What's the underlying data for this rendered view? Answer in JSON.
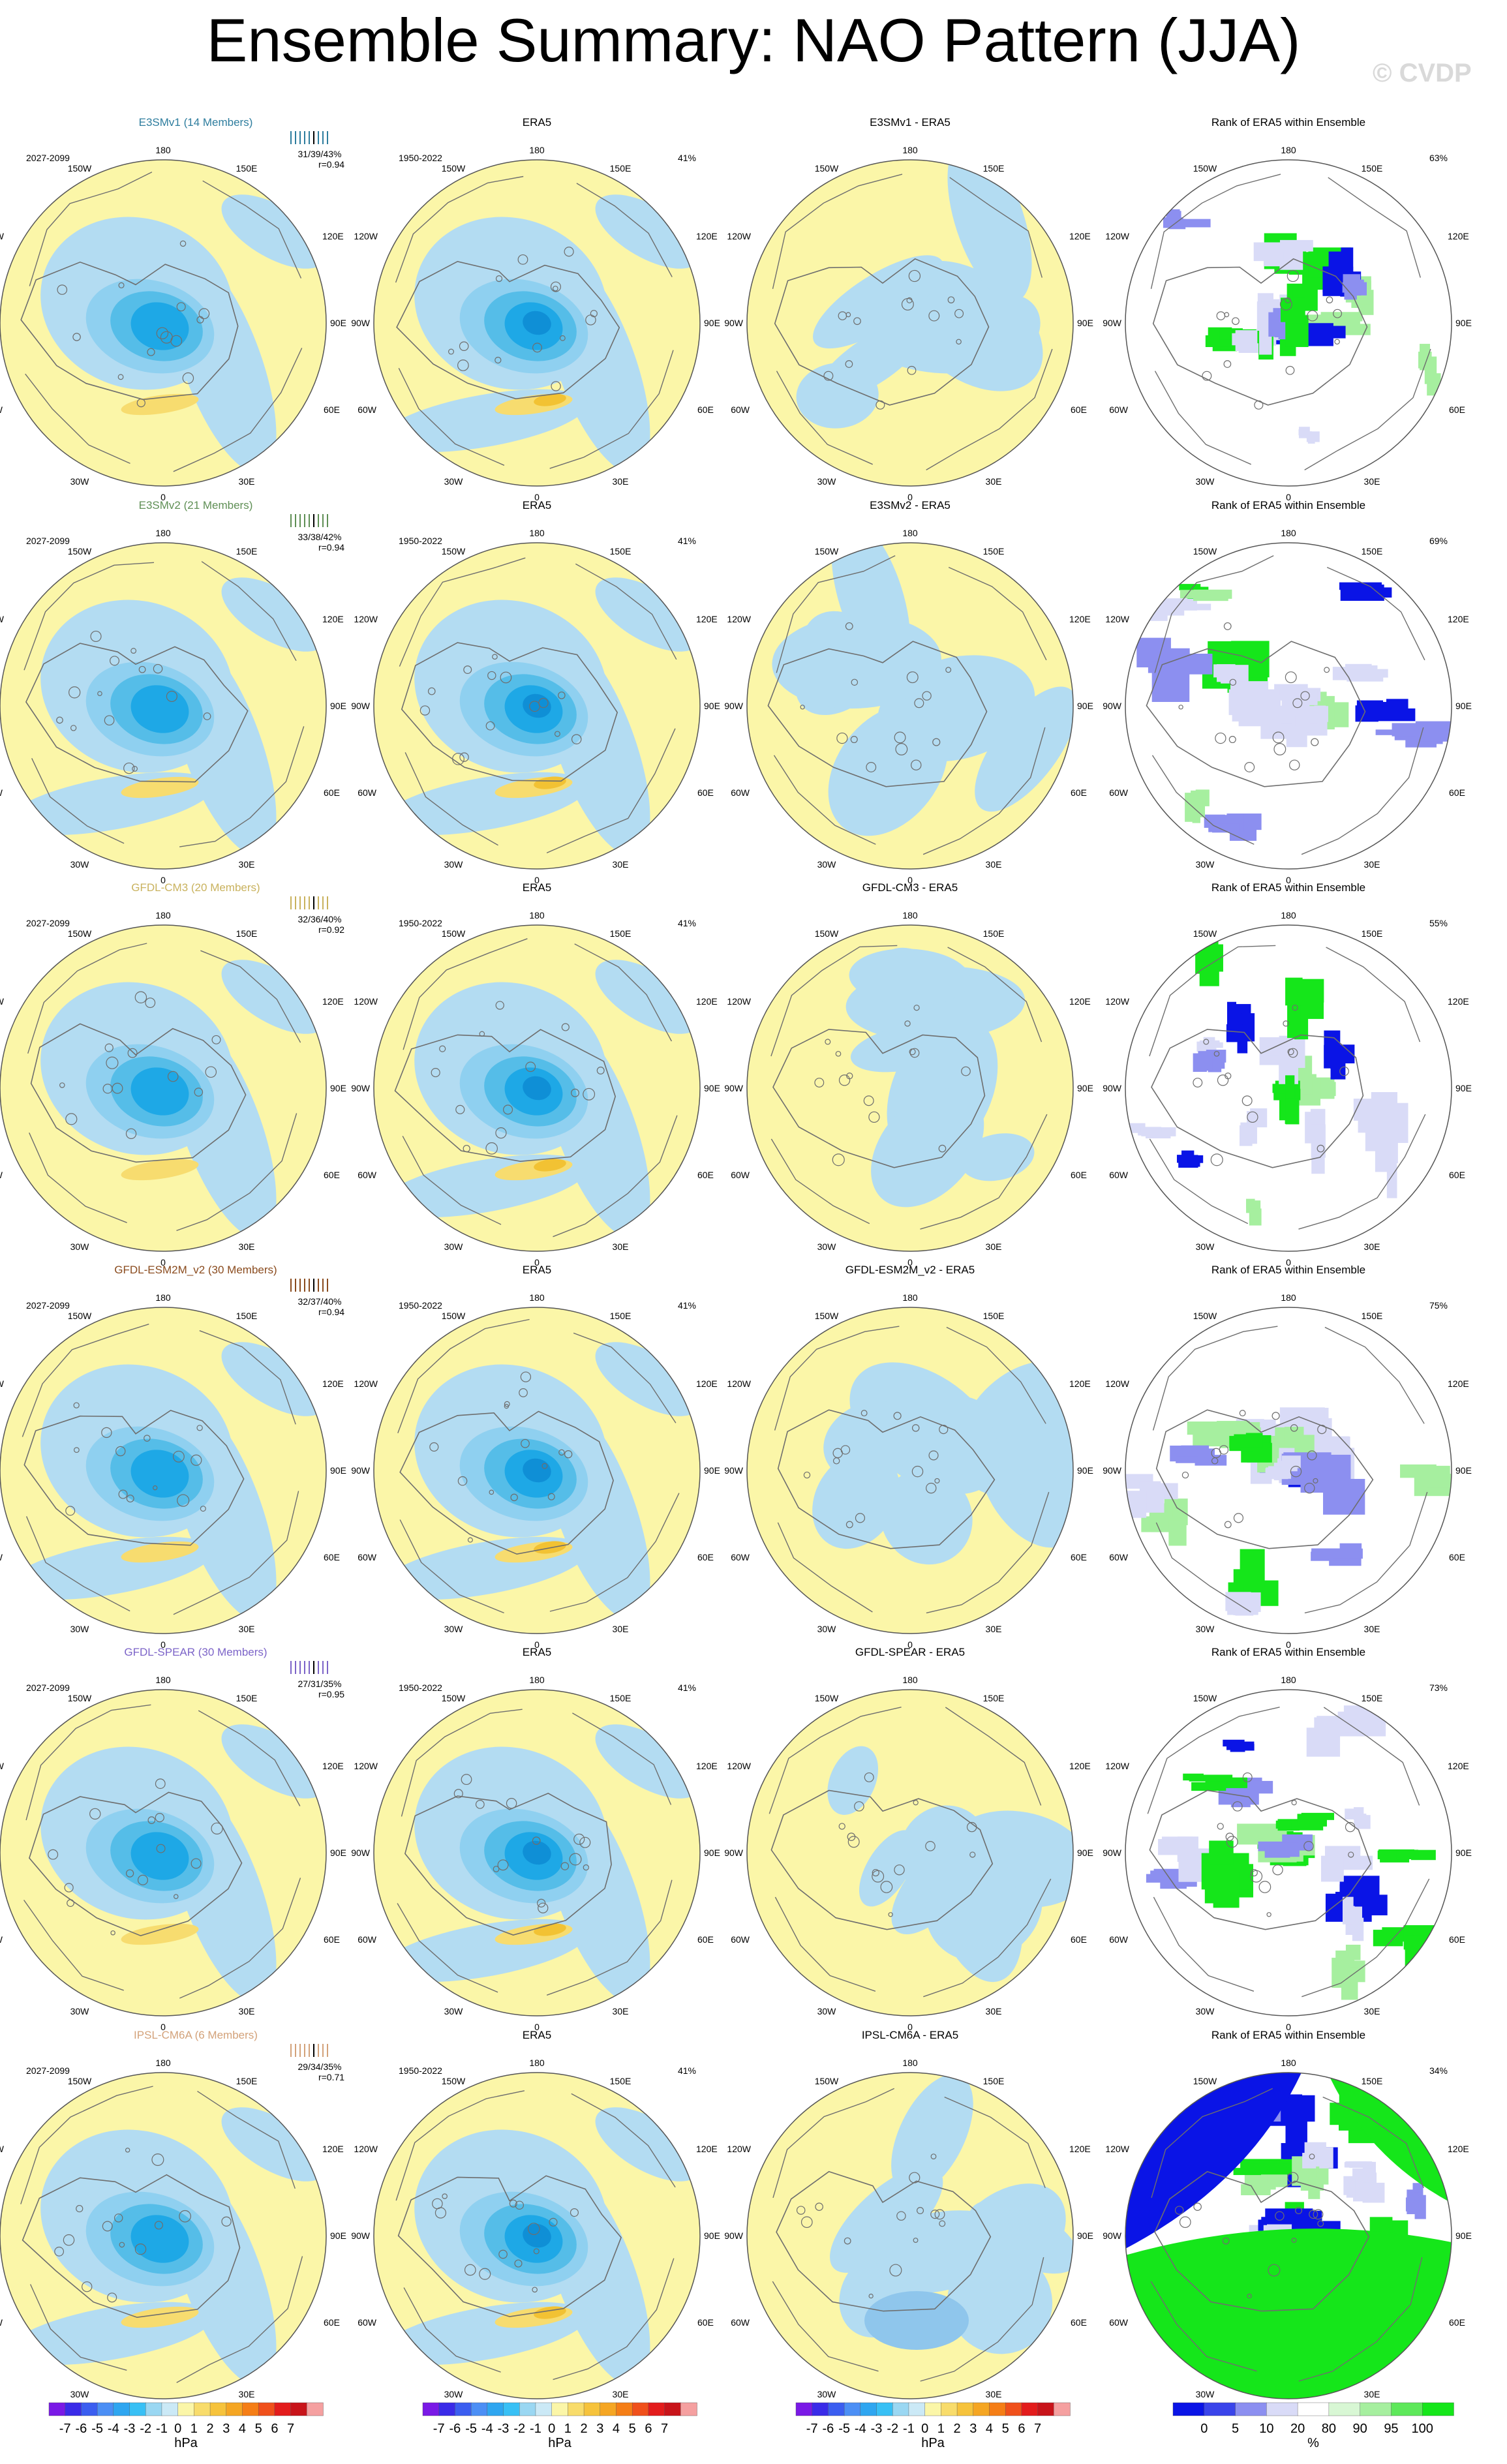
{
  "title": "Ensemble Summary: NAO Pattern (JJA)",
  "watermark": "© CVDP",
  "colors": {
    "ocean_neg": "#b3dcf2",
    "land_pos": "#fbf6a8",
    "neg_levels": [
      "#8fd0f0",
      "#55bde8",
      "#1ea8e6",
      "#0f8fd6"
    ],
    "pos_levels": [
      "#f7dc6f",
      "#f2c233",
      "#f0a820"
    ],
    "rank_dark": "#0a14e6",
    "rank_mid": "#8c8ff0",
    "rank_light": "#d9dbf7",
    "rank_green": "#15e61a",
    "rank_lightgreen": "#a6ef9f",
    "coast": "#6e6e6e"
  },
  "lon_labels": {
    "top": "180",
    "bottom": "0",
    "upper_left": "150W",
    "upper_right": "150E",
    "mid_upper_left": "120W",
    "mid_upper_right": "120E",
    "left": "90W",
    "right": "90E",
    "mid_lower_left": "60W",
    "mid_lower_right": "60E",
    "lower_left": "30W",
    "lower_right": "30E"
  },
  "rows": [
    {
      "model": "E3SMv1 (14 Members)",
      "model_color": "#2e7d9e",
      "period": "2027-2099",
      "stats": "31/39/43%",
      "r": "r=0.94",
      "obs_title": "ERA5",
      "obs_period": "1950-2022",
      "obs_pct": "41%",
      "diff_title": "E3SMv1 - ERA5",
      "rank_title": "Rank of ERA5 within Ensemble",
      "rank_pct": "63%",
      "variant": 0
    },
    {
      "model": "E3SMv2 (21 Members)",
      "model_color": "#5f8f55",
      "period": "2027-2099",
      "stats": "33/38/42%",
      "r": "r=0.94",
      "obs_title": "ERA5",
      "obs_period": "1950-2022",
      "obs_pct": "41%",
      "diff_title": "E3SMv2 - ERA5",
      "rank_title": "Rank of ERA5 within Ensemble",
      "rank_pct": "69%",
      "variant": 1
    },
    {
      "model": "GFDL-CM3 (20 Members)",
      "model_color": "#c9b25e",
      "period": "2027-2099",
      "stats": "32/36/40%",
      "r": "r=0.92",
      "obs_title": "ERA5",
      "obs_period": "1950-2022",
      "obs_pct": "41%",
      "diff_title": "GFDL-CM3 - ERA5",
      "rank_title": "Rank of ERA5 within Ensemble",
      "rank_pct": "55%",
      "variant": 2
    },
    {
      "model": "GFDL-ESM2M_v2 (30 Members)",
      "model_color": "#8a4b1e",
      "period": "2027-2099",
      "stats": "32/37/40%",
      "r": "r=0.94",
      "obs_title": "ERA5",
      "obs_period": "1950-2022",
      "obs_pct": "41%",
      "diff_title": "GFDL-ESM2M_v2 - ERA5",
      "rank_title": "Rank of ERA5 within Ensemble",
      "rank_pct": "75%",
      "variant": 3
    },
    {
      "model": "GFDL-SPEAR (30 Members)",
      "model_color": "#7c64c8",
      "period": "2027-2099",
      "stats": "27/31/35%",
      "r": "r=0.95",
      "obs_title": "ERA5",
      "obs_period": "1950-2022",
      "obs_pct": "41%",
      "diff_title": "GFDL-SPEAR - ERA5",
      "rank_title": "Rank of ERA5 within Ensemble",
      "rank_pct": "73%",
      "variant": 4
    },
    {
      "model": "IPSL-CM6A (6 Members)",
      "model_color": "#d3a27a",
      "period": "2027-2099",
      "stats": "29/34/35%",
      "r": "r=0.71",
      "obs_title": "ERA5",
      "obs_period": "1950-2022",
      "obs_pct": "41%",
      "diff_title": "IPSL-CM6A - ERA5",
      "rank_title": "Rank of ERA5 within Ensemble",
      "rank_pct": "34%",
      "variant": 5
    }
  ],
  "chart_data": [
    {
      "type": "colorbar",
      "unit": "hPa",
      "ticks": [
        "-7",
        "-6",
        "-5",
        "-4",
        "-3",
        "-2",
        "-1",
        "0",
        "1",
        "2",
        "3",
        "4",
        "5",
        "6",
        "7"
      ],
      "colors": [
        "#7a19e6",
        "#3a2be8",
        "#3b5ef0",
        "#4c8ff5",
        "#2fa6f0",
        "#38c0f5",
        "#9ad7f2",
        "#cbe9f6",
        "#fbf6a8",
        "#f8dc6b",
        "#f6c33c",
        "#f5a623",
        "#f57e16",
        "#f0501b",
        "#e31c1c",
        "#c8141a",
        "#f5a0a0"
      ]
    },
    {
      "type": "colorbar",
      "unit": "hPa",
      "ticks": [
        "-7",
        "-6",
        "-5",
        "-4",
        "-3",
        "-2",
        "-1",
        "0",
        "1",
        "2",
        "3",
        "4",
        "5",
        "6",
        "7"
      ],
      "colors": [
        "#7a19e6",
        "#3a2be8",
        "#3b5ef0",
        "#4c8ff5",
        "#2fa6f0",
        "#38c0f5",
        "#9ad7f2",
        "#cbe9f6",
        "#fbf6a8",
        "#f8dc6b",
        "#f6c33c",
        "#f5a623",
        "#f57e16",
        "#f0501b",
        "#e31c1c",
        "#c8141a",
        "#f5a0a0"
      ]
    },
    {
      "type": "colorbar",
      "unit": "hPa",
      "ticks": [
        "-7",
        "-6",
        "-5",
        "-4",
        "-3",
        "-2",
        "-1",
        "0",
        "1",
        "2",
        "3",
        "4",
        "5",
        "6",
        "7"
      ],
      "colors": [
        "#7a19e6",
        "#3a2be8",
        "#3b5ef0",
        "#4c8ff5",
        "#2fa6f0",
        "#38c0f5",
        "#9ad7f2",
        "#cbe9f6",
        "#fbf6a8",
        "#f8dc6b",
        "#f6c33c",
        "#f5a623",
        "#f57e16",
        "#f0501b",
        "#e31c1c",
        "#c8141a",
        "#f5a0a0"
      ]
    },
    {
      "type": "colorbar",
      "unit": "%",
      "ticks": [
        "0",
        "5",
        "10",
        "20",
        "80",
        "90",
        "95",
        "100"
      ],
      "colors": [
        "#0a14e6",
        "#3a44ea",
        "#8c8ff0",
        "#d9dbf7",
        "#ffffff",
        "#d8f7d4",
        "#a6ef9f",
        "#5ee85a",
        "#15e61a"
      ]
    }
  ]
}
